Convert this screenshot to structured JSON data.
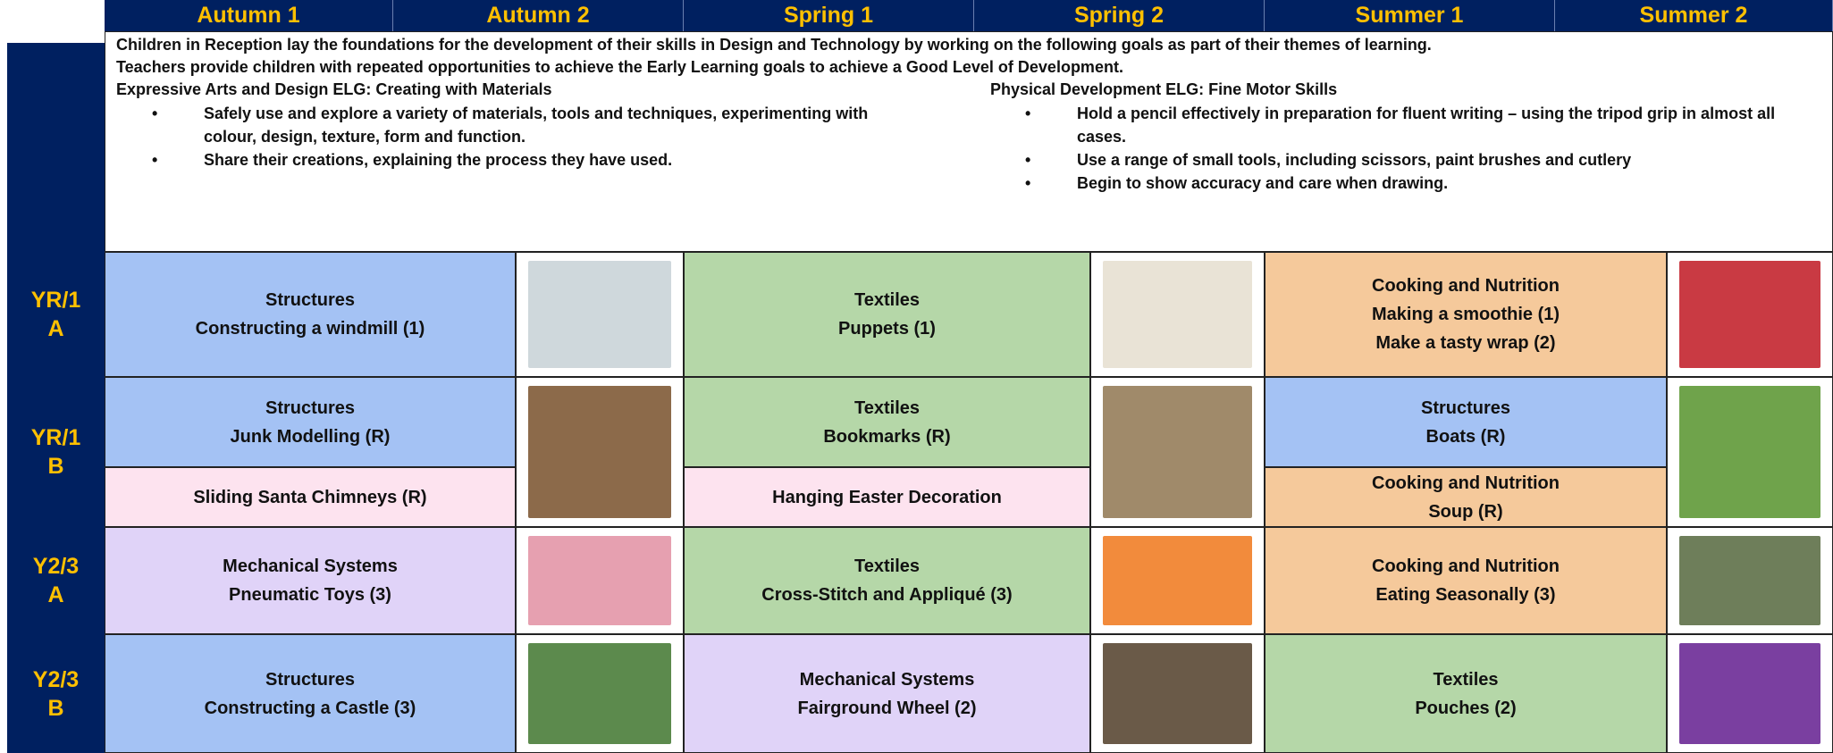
{
  "header": {
    "columns": [
      "Autumn 1",
      "Autumn 2",
      "Spring 1",
      "Spring 2",
      "Summer 1",
      "Summer 2"
    ]
  },
  "intro": {
    "paragraph": [
      "Children in Reception lay the foundations for the development of their skills in Design and Technology by working on the following goals as part of their themes of learning.",
      "Teachers provide children with repeated opportunities to achieve the Early Learning goals to achieve a Good Level of Development."
    ],
    "left": {
      "heading": "Expressive Arts and Design ELG: Creating with Materials",
      "bullets": [
        "Safely use and explore a variety of materials, tools and techniques, experimenting with colour, design, texture, form and function.",
        "Share their creations, explaining the process they have used."
      ]
    },
    "right": {
      "heading": "Physical Development ELG: Fine Motor Skills",
      "bullets": [
        "Hold a pencil effectively in preparation for fluent writing – using the tripod grip in almost all cases.",
        "Use a range of small tools, including scissors, paint brushes and cutlery",
        "Begin to show accuracy and care when drawing."
      ]
    }
  },
  "rows": [
    {
      "label": [
        "YR/1",
        "A"
      ],
      "groups": [
        [
          {
            "color": "#a4c2f4",
            "lines": [
              "Structures",
              "Constructing a windmill (1)"
            ]
          }
        ],
        [
          {
            "color": "#b5d7a8",
            "lines": [
              "Textiles",
              "Puppets (1)"
            ]
          }
        ],
        [
          {
            "color": "#f5c99b",
            "lines": [
              "Cooking and Nutrition",
              "Making a smoothie (1)",
              "Make a tasty wrap (2)"
            ]
          }
        ]
      ]
    },
    {
      "label": [
        "YR/1",
        "B"
      ],
      "groups": [
        [
          {
            "color": "#a4c2f4",
            "lines": [
              "Structures",
              "Junk Modelling (R)"
            ]
          },
          {
            "color": "#fde3ef",
            "lines": [
              "Sliding Santa Chimneys (R)"
            ]
          }
        ],
        [
          {
            "color": "#b5d7a8",
            "lines": [
              "Textiles",
              "Bookmarks (R)"
            ]
          },
          {
            "color": "#fde3ef",
            "lines": [
              "Hanging Easter Decoration"
            ]
          }
        ],
        [
          {
            "color": "#a4c2f4",
            "lines": [
              "Structures",
              "Boats (R)"
            ]
          },
          {
            "color": "#f5c99b",
            "lines": [
              "Cooking and Nutrition",
              "Soup (R)"
            ]
          }
        ]
      ]
    },
    {
      "label": [
        "Y2/3",
        "A"
      ],
      "groups": [
        [
          {
            "color": "#e0d3f8",
            "lines": [
              "Mechanical Systems",
              "Pneumatic Toys (3)"
            ]
          }
        ],
        [
          {
            "color": "#b5d7a8",
            "lines": [
              "Textiles",
              "Cross-Stitch and Appliqué (3)"
            ]
          }
        ],
        [
          {
            "color": "#f5c99b",
            "lines": [
              "Cooking and Nutrition",
              "Eating Seasonally (3)"
            ]
          }
        ]
      ]
    },
    {
      "label": [
        "Y2/3",
        "B"
      ],
      "groups": [
        [
          {
            "color": "#a4c2f4",
            "lines": [
              "Structures",
              "Constructing a Castle (3)"
            ]
          }
        ],
        [
          {
            "color": "#e0d3f8",
            "lines": [
              "Mechanical Systems",
              "Fairground Wheel (2)"
            ]
          }
        ],
        [
          {
            "color": "#b5d7a8",
            "lines": [
              "Textiles",
              "Pouches (2)"
            ]
          }
        ]
      ]
    }
  ]
}
